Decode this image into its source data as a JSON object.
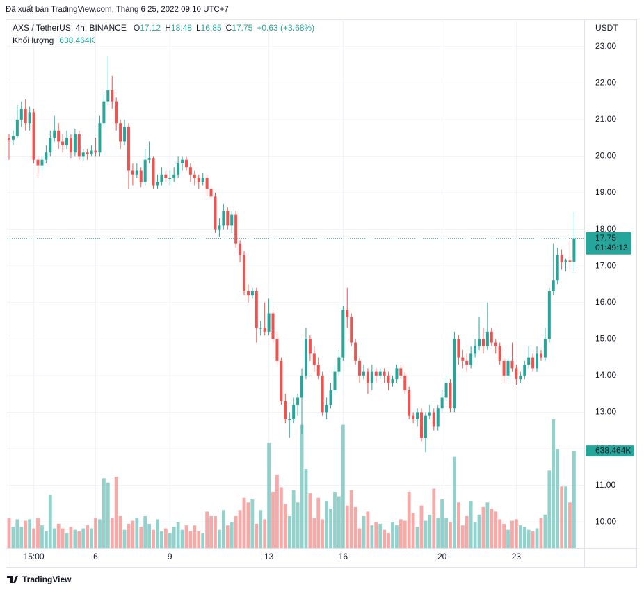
{
  "header": "Đã xuất bản TradingView.com, Tháng 6 25, 2022 09:10 UTC+7",
  "footer": "TradingView",
  "chart_data": {
    "type": "candlestick",
    "currency": "USDT",
    "legend": {
      "symbol": "AXS / TetherUS, 4h, BINANCE",
      "ohlc": [
        {
          "label": "O",
          "value": "17.12"
        },
        {
          "label": "H",
          "value": "18.48"
        },
        {
          "label": "L",
          "value": "16.85"
        },
        {
          "label": "C",
          "value": "17.75"
        }
      ],
      "change": "+0.63 (+3.68%)",
      "volume_label": "Khối lượng",
      "volume_value": "638.464K"
    },
    "price_badge": {
      "price": "17.75",
      "countdown": "01:49:13"
    },
    "volume_badge": "638.464K",
    "colors": {
      "up": "#26a69a",
      "down": "#ef5350",
      "volume_up": "rgba(38,166,154,0.5)",
      "volume_down": "rgba(239,83,80,0.5)"
    },
    "grid": true,
    "ylim": [
      9.28,
      23.7
    ],
    "yticks": [
      {
        "value": 10,
        "label": "10.00"
      },
      {
        "value": 11,
        "label": "11.00"
      },
      {
        "value": 12,
        "label": "12.00"
      },
      {
        "value": 13,
        "label": "13.00"
      },
      {
        "value": 14,
        "label": "14.00"
      },
      {
        "value": 15,
        "label": "15.00"
      },
      {
        "value": 16,
        "label": "16.00"
      },
      {
        "value": 17,
        "label": "17.00"
      },
      {
        "value": 18,
        "label": "18.00"
      },
      {
        "value": 19,
        "label": "19.00"
      },
      {
        "value": 20,
        "label": "20.00"
      },
      {
        "value": 21,
        "label": "21.00"
      },
      {
        "value": 22,
        "label": "22.00"
      },
      {
        "value": 23,
        "label": "23.00"
      }
    ],
    "volume_lim": [
      0,
      1000
    ],
    "categories": [
      null,
      null,
      null,
      null,
      null,
      null,
      "15:00",
      null,
      null,
      null,
      null,
      null,
      null,
      null,
      null,
      null,
      null,
      null,
      null,
      null,
      null,
      "6",
      null,
      null,
      null,
      null,
      null,
      null,
      null,
      null,
      null,
      null,
      null,
      null,
      null,
      null,
      null,
      null,
      null,
      "9",
      null,
      null,
      null,
      null,
      null,
      null,
      null,
      null,
      null,
      null,
      null,
      null,
      null,
      null,
      null,
      null,
      null,
      null,
      null,
      null,
      null,
      null,
      null,
      "13",
      null,
      null,
      null,
      null,
      null,
      null,
      null,
      null,
      null,
      null,
      null,
      null,
      null,
      null,
      null,
      null,
      null,
      "16",
      null,
      null,
      null,
      null,
      null,
      null,
      null,
      null,
      null,
      null,
      null,
      null,
      null,
      null,
      null,
      null,
      null,
      null,
      null,
      null,
      null,
      null,
      null,
      "20",
      null,
      null,
      null,
      null,
      null,
      null,
      null,
      null,
      null,
      null,
      null,
      null,
      null,
      null,
      null,
      null,
      null,
      "23",
      null,
      null,
      null,
      null,
      null,
      null,
      null,
      null,
      null,
      null,
      null,
      null,
      null,
      null
    ],
    "ohlc": [
      [
        20.5,
        20.6,
        19.9,
        20.45
      ],
      [
        20.45,
        20.7,
        20.3,
        20.55
      ],
      [
        20.55,
        21.4,
        20.5,
        21.0
      ],
      [
        21.0,
        21.5,
        20.8,
        21.3
      ],
      [
        21.3,
        21.55,
        20.7,
        20.9
      ],
      [
        20.9,
        21.35,
        20.7,
        21.2
      ],
      [
        21.2,
        21.3,
        19.8,
        19.9
      ],
      [
        19.9,
        20.0,
        19.45,
        19.75
      ],
      [
        19.75,
        20.0,
        19.6,
        19.9
      ],
      [
        19.9,
        20.3,
        19.8,
        20.1
      ],
      [
        20.1,
        20.7,
        20.0,
        20.5
      ],
      [
        20.5,
        21.1,
        20.4,
        20.7
      ],
      [
        20.7,
        20.9,
        20.2,
        20.4
      ],
      [
        20.4,
        20.6,
        20.1,
        20.3
      ],
      [
        20.3,
        20.7,
        20.2,
        20.5
      ],
      [
        20.5,
        20.6,
        19.95,
        20.1
      ],
      [
        20.1,
        20.75,
        20.0,
        20.6
      ],
      [
        20.6,
        20.7,
        19.9,
        20.0
      ],
      [
        20.0,
        20.2,
        19.85,
        20.1
      ],
      [
        20.1,
        20.2,
        19.9,
        20.05
      ],
      [
        20.05,
        20.3,
        20.0,
        20.15
      ],
      [
        20.15,
        20.5,
        20.0,
        20.1
      ],
      [
        20.1,
        21.1,
        20.0,
        20.9
      ],
      [
        20.9,
        21.7,
        20.8,
        21.5
      ],
      [
        21.5,
        22.75,
        21.4,
        21.8
      ],
      [
        21.8,
        22.2,
        21.3,
        21.5
      ],
      [
        21.5,
        21.6,
        20.7,
        20.9
      ],
      [
        20.9,
        21.0,
        20.2,
        20.4
      ],
      [
        20.4,
        21.0,
        20.3,
        20.8
      ],
      [
        20.8,
        20.9,
        19.1,
        19.6
      ],
      [
        19.6,
        19.8,
        19.2,
        19.5
      ],
      [
        19.5,
        19.8,
        19.4,
        19.6
      ],
      [
        19.6,
        19.7,
        19.15,
        19.3
      ],
      [
        19.3,
        20.2,
        19.2,
        19.9
      ],
      [
        19.9,
        20.4,
        19.8,
        19.95
      ],
      [
        19.95,
        20.0,
        19.1,
        19.2
      ],
      [
        19.2,
        19.5,
        19.1,
        19.3
      ],
      [
        19.3,
        19.7,
        19.2,
        19.5
      ],
      [
        19.5,
        19.6,
        19.3,
        19.4
      ],
      [
        19.4,
        19.6,
        19.2,
        19.4
      ],
      [
        19.4,
        19.7,
        19.3,
        19.5
      ],
      [
        19.5,
        20.0,
        19.4,
        19.8
      ],
      [
        19.8,
        20.0,
        19.6,
        19.9
      ],
      [
        19.9,
        20.0,
        19.6,
        19.7
      ],
      [
        19.7,
        19.8,
        19.3,
        19.5
      ],
      [
        19.5,
        19.6,
        19.2,
        19.4
      ],
      [
        19.4,
        19.5,
        19.1,
        19.3
      ],
      [
        19.3,
        19.55,
        19.2,
        19.4
      ],
      [
        19.4,
        19.5,
        18.9,
        19.1
      ],
      [
        19.1,
        19.2,
        18.8,
        18.9
      ],
      [
        18.9,
        19.0,
        17.9,
        18.0
      ],
      [
        18.0,
        18.3,
        17.8,
        18.1
      ],
      [
        18.1,
        18.7,
        18.0,
        18.5
      ],
      [
        18.5,
        18.6,
        18.0,
        18.1
      ],
      [
        18.1,
        18.5,
        17.9,
        18.4
      ],
      [
        18.4,
        18.5,
        17.5,
        17.6
      ],
      [
        17.6,
        17.7,
        17.1,
        17.3
      ],
      [
        17.3,
        17.4,
        16.2,
        16.3
      ],
      [
        16.3,
        16.5,
        16.0,
        16.2
      ],
      [
        16.2,
        16.4,
        16.1,
        16.3
      ],
      [
        16.3,
        16.4,
        14.9,
        15.3
      ],
      [
        15.3,
        15.5,
        15.1,
        15.3
      ],
      [
        15.3,
        16.0,
        15.1,
        15.2
      ],
      [
        15.2,
        16.1,
        15.1,
        15.7
      ],
      [
        15.7,
        15.8,
        14.9,
        15.0
      ],
      [
        15.0,
        15.2,
        14.3,
        14.4
      ],
      [
        14.4,
        14.5,
        13.2,
        13.3
      ],
      [
        13.3,
        13.5,
        12.7,
        12.8
      ],
      [
        12.8,
        13.0,
        12.3,
        12.8
      ],
      [
        12.8,
        13.4,
        12.7,
        13.2
      ],
      [
        13.2,
        13.5,
        12.9,
        13.4
      ],
      [
        13.4,
        14.2,
        12.4,
        14.0
      ],
      [
        14.0,
        15.3,
        13.9,
        15.0
      ],
      [
        15.0,
        15.1,
        14.4,
        14.6
      ],
      [
        14.6,
        14.8,
        14.1,
        14.3
      ],
      [
        14.3,
        14.5,
        13.9,
        14.0
      ],
      [
        14.0,
        14.1,
        12.9,
        13.0
      ],
      [
        13.0,
        13.4,
        12.8,
        13.2
      ],
      [
        13.2,
        13.8,
        13.1,
        13.6
      ],
      [
        13.6,
        14.3,
        13.5,
        14.1
      ],
      [
        14.1,
        14.7,
        14.0,
        14.5
      ],
      [
        14.5,
        15.9,
        14.4,
        15.8
      ],
      [
        15.8,
        16.4,
        15.3,
        15.6
      ],
      [
        15.6,
        15.7,
        14.8,
        14.9
      ],
      [
        14.9,
        15.0,
        14.3,
        14.4
      ],
      [
        14.4,
        14.5,
        13.8,
        14.0
      ],
      [
        14.0,
        14.3,
        13.9,
        14.1
      ],
      [
        14.1,
        14.2,
        13.5,
        13.8
      ],
      [
        13.8,
        14.3,
        13.6,
        14.1
      ],
      [
        14.1,
        14.2,
        13.8,
        14.0
      ],
      [
        14.0,
        14.2,
        13.9,
        14.1
      ],
      [
        14.1,
        14.2,
        13.8,
        14.0
      ],
      [
        14.0,
        14.1,
        13.6,
        13.8
      ],
      [
        13.8,
        14.0,
        13.7,
        13.9
      ],
      [
        13.9,
        14.3,
        13.8,
        14.2
      ],
      [
        14.2,
        14.3,
        13.9,
        14.0
      ],
      [
        14.0,
        14.1,
        13.5,
        13.6
      ],
      [
        13.6,
        13.7,
        12.8,
        12.9
      ],
      [
        12.9,
        13.0,
        12.7,
        12.8
      ],
      [
        12.8,
        13.1,
        12.6,
        13.0
      ],
      [
        13.0,
        13.1,
        12.2,
        12.3
      ],
      [
        12.3,
        13.0,
        11.9,
        12.9
      ],
      [
        12.9,
        13.2,
        12.8,
        13.0
      ],
      [
        13.0,
        13.1,
        12.5,
        12.6
      ],
      [
        12.6,
        13.2,
        12.5,
        13.1
      ],
      [
        13.1,
        13.6,
        13.0,
        13.4
      ],
      [
        13.4,
        14.0,
        13.3,
        13.8
      ],
      [
        13.8,
        13.9,
        13.0,
        13.1
      ],
      [
        13.1,
        15.2,
        13.0,
        15.0
      ],
      [
        15.0,
        15.1,
        14.3,
        14.5
      ],
      [
        14.5,
        14.7,
        14.2,
        14.4
      ],
      [
        14.4,
        14.6,
        14.1,
        14.3
      ],
      [
        14.3,
        14.8,
        14.2,
        14.6
      ],
      [
        14.6,
        15.0,
        14.5,
        14.8
      ],
      [
        14.8,
        15.6,
        14.7,
        15.0
      ],
      [
        15.0,
        15.3,
        14.6,
        14.8
      ],
      [
        14.8,
        16.0,
        14.7,
        15.2
      ],
      [
        15.2,
        15.3,
        14.8,
        14.9
      ],
      [
        14.9,
        15.0,
        14.6,
        14.8
      ],
      [
        14.8,
        14.9,
        14.3,
        14.4
      ],
      [
        14.4,
        14.5,
        13.8,
        14.0
      ],
      [
        14.0,
        14.5,
        13.9,
        14.4
      ],
      [
        14.4,
        14.9,
        14.1,
        14.2
      ],
      [
        14.2,
        14.3,
        13.75,
        13.9
      ],
      [
        13.9,
        14.1,
        13.8,
        14.0
      ],
      [
        14.0,
        14.4,
        13.9,
        14.3
      ],
      [
        14.3,
        14.8,
        14.2,
        14.5
      ],
      [
        14.5,
        14.6,
        14.1,
        14.2
      ],
      [
        14.2,
        14.8,
        14.1,
        14.6
      ],
      [
        14.6,
        14.7,
        14.4,
        14.5
      ],
      [
        14.5,
        15.3,
        14.4,
        15.0
      ],
      [
        15.0,
        16.4,
        14.9,
        16.3
      ],
      [
        16.3,
        17.6,
        16.2,
        16.6
      ],
      [
        16.6,
        17.5,
        16.5,
        17.3
      ],
      [
        17.3,
        17.45,
        16.9,
        17.1
      ],
      [
        17.1,
        17.2,
        16.85,
        17.15
      ],
      [
        17.15,
        17.7,
        16.9,
        17.12
      ],
      [
        17.12,
        18.48,
        16.85,
        17.75
      ]
    ],
    "volume": [
      200,
      140,
      190,
      140,
      180,
      190,
      130,
      200,
      150,
      110,
      350,
      130,
      160,
      130,
      100,
      140,
      120,
      110,
      130,
      150,
      130,
      200,
      190,
      460,
      430,
      200,
      470,
      210,
      120,
      160,
      180,
      200,
      140,
      210,
      160,
      120,
      190,
      110,
      130,
      100,
      140,
      170,
      120,
      150,
      110,
      150,
      110,
      100,
      240,
      210,
      210,
      120,
      250,
      150,
      170,
      210,
      250,
      330,
      300,
      320,
      160,
      250,
      190,
      690,
      370,
      480,
      400,
      290,
      210,
      380,
      300,
      810,
      520,
      360,
      200,
      330,
      190,
      310,
      260,
      370,
      340,
      810,
      280,
      380,
      270,
      130,
      210,
      240,
      150,
      170,
      160,
      120,
      100,
      170,
      150,
      190,
      180,
      370,
      230,
      140,
      280,
      180,
      220,
      390,
      200,
      320,
      200,
      170,
      600,
      300,
      150,
      210,
      310,
      170,
      220,
      270,
      300,
      260,
      240,
      190,
      160,
      120,
      180,
      190,
      150,
      140,
      120,
      110,
      130,
      200,
      220,
      510,
      845,
      650,
      405,
      405,
      300,
      638.464
    ]
  }
}
